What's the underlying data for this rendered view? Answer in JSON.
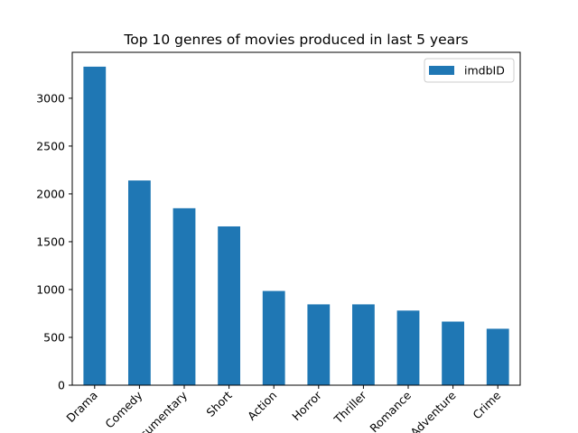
{
  "chart_data": {
    "type": "bar",
    "title": "Top 10 genres of movies produced in last 5 years",
    "xlabel": "",
    "ylabel": "",
    "categories": [
      "Drama",
      "Comedy",
      "Documentary",
      "Short",
      "Action",
      "Horror",
      "Thriller",
      "Romance",
      "Adventure",
      "Crime"
    ],
    "series": [
      {
        "name": "imdbID",
        "values": [
          3330,
          2140,
          1850,
          1660,
          985,
          845,
          845,
          780,
          665,
          590
        ],
        "color": "#1f77b4"
      }
    ],
    "ylim": [
      0,
      3480
    ],
    "yticks": [
      0,
      500,
      1000,
      1500,
      2000,
      2500,
      3000
    ],
    "ytick_labels": [
      "0",
      "500",
      "1000",
      "1500",
      "2000",
      "2500",
      "3000"
    ],
    "grid": false,
    "legend_position": "top-right",
    "xtick_rotation": 45
  }
}
